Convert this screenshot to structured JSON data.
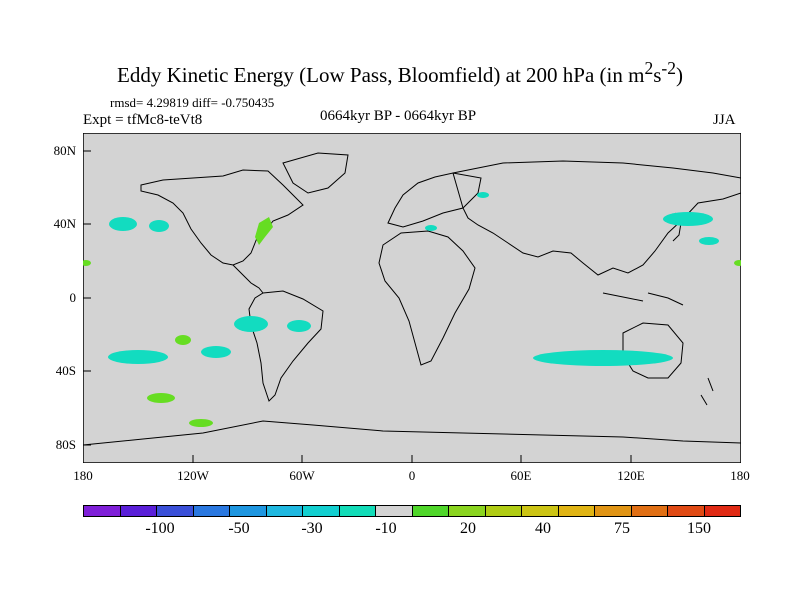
{
  "title": {
    "main": "Eddy Kinetic Energy (Low Pass, Bloomfield) at 200 hPa (in m",
    "sup1": "2",
    "mid": "s",
    "sup2": "-2",
    "close": ")"
  },
  "stats": "rmsd= 4.29819 diff= -0.750435",
  "expt": "Expt = tfMc8-teVt8",
  "period": "0664kyr BP - 0664kyr BP",
  "season": "JJA",
  "lat_labels": [
    "80N",
    "40N",
    "0",
    "40S",
    "80S"
  ],
  "lon_labels": [
    "180",
    "120W",
    "60W",
    "0",
    "60E",
    "120E",
    "180"
  ],
  "colorbar": {
    "colors": [
      "#7f1fd8",
      "#5a1fd8",
      "#3a4fd8",
      "#2a78e0",
      "#1e96e0",
      "#1fb8e0",
      "#12cfd0",
      "#12dcb8",
      "#d3d3d3",
      "#4fd62a",
      "#8ad41f",
      "#b0cc14",
      "#ccc414",
      "#e0b414",
      "#e09414",
      "#e06f14",
      "#e04a14",
      "#e02a14"
    ],
    "labels": [
      "-100",
      "-50",
      "-30",
      "-10",
      "20",
      "40",
      "75",
      "150"
    ]
  },
  "palette": {
    "land_ocean_bg": "#d3d3d3",
    "negative_patch": "#12dcc0",
    "positive_patch": "#66dd22"
  }
}
